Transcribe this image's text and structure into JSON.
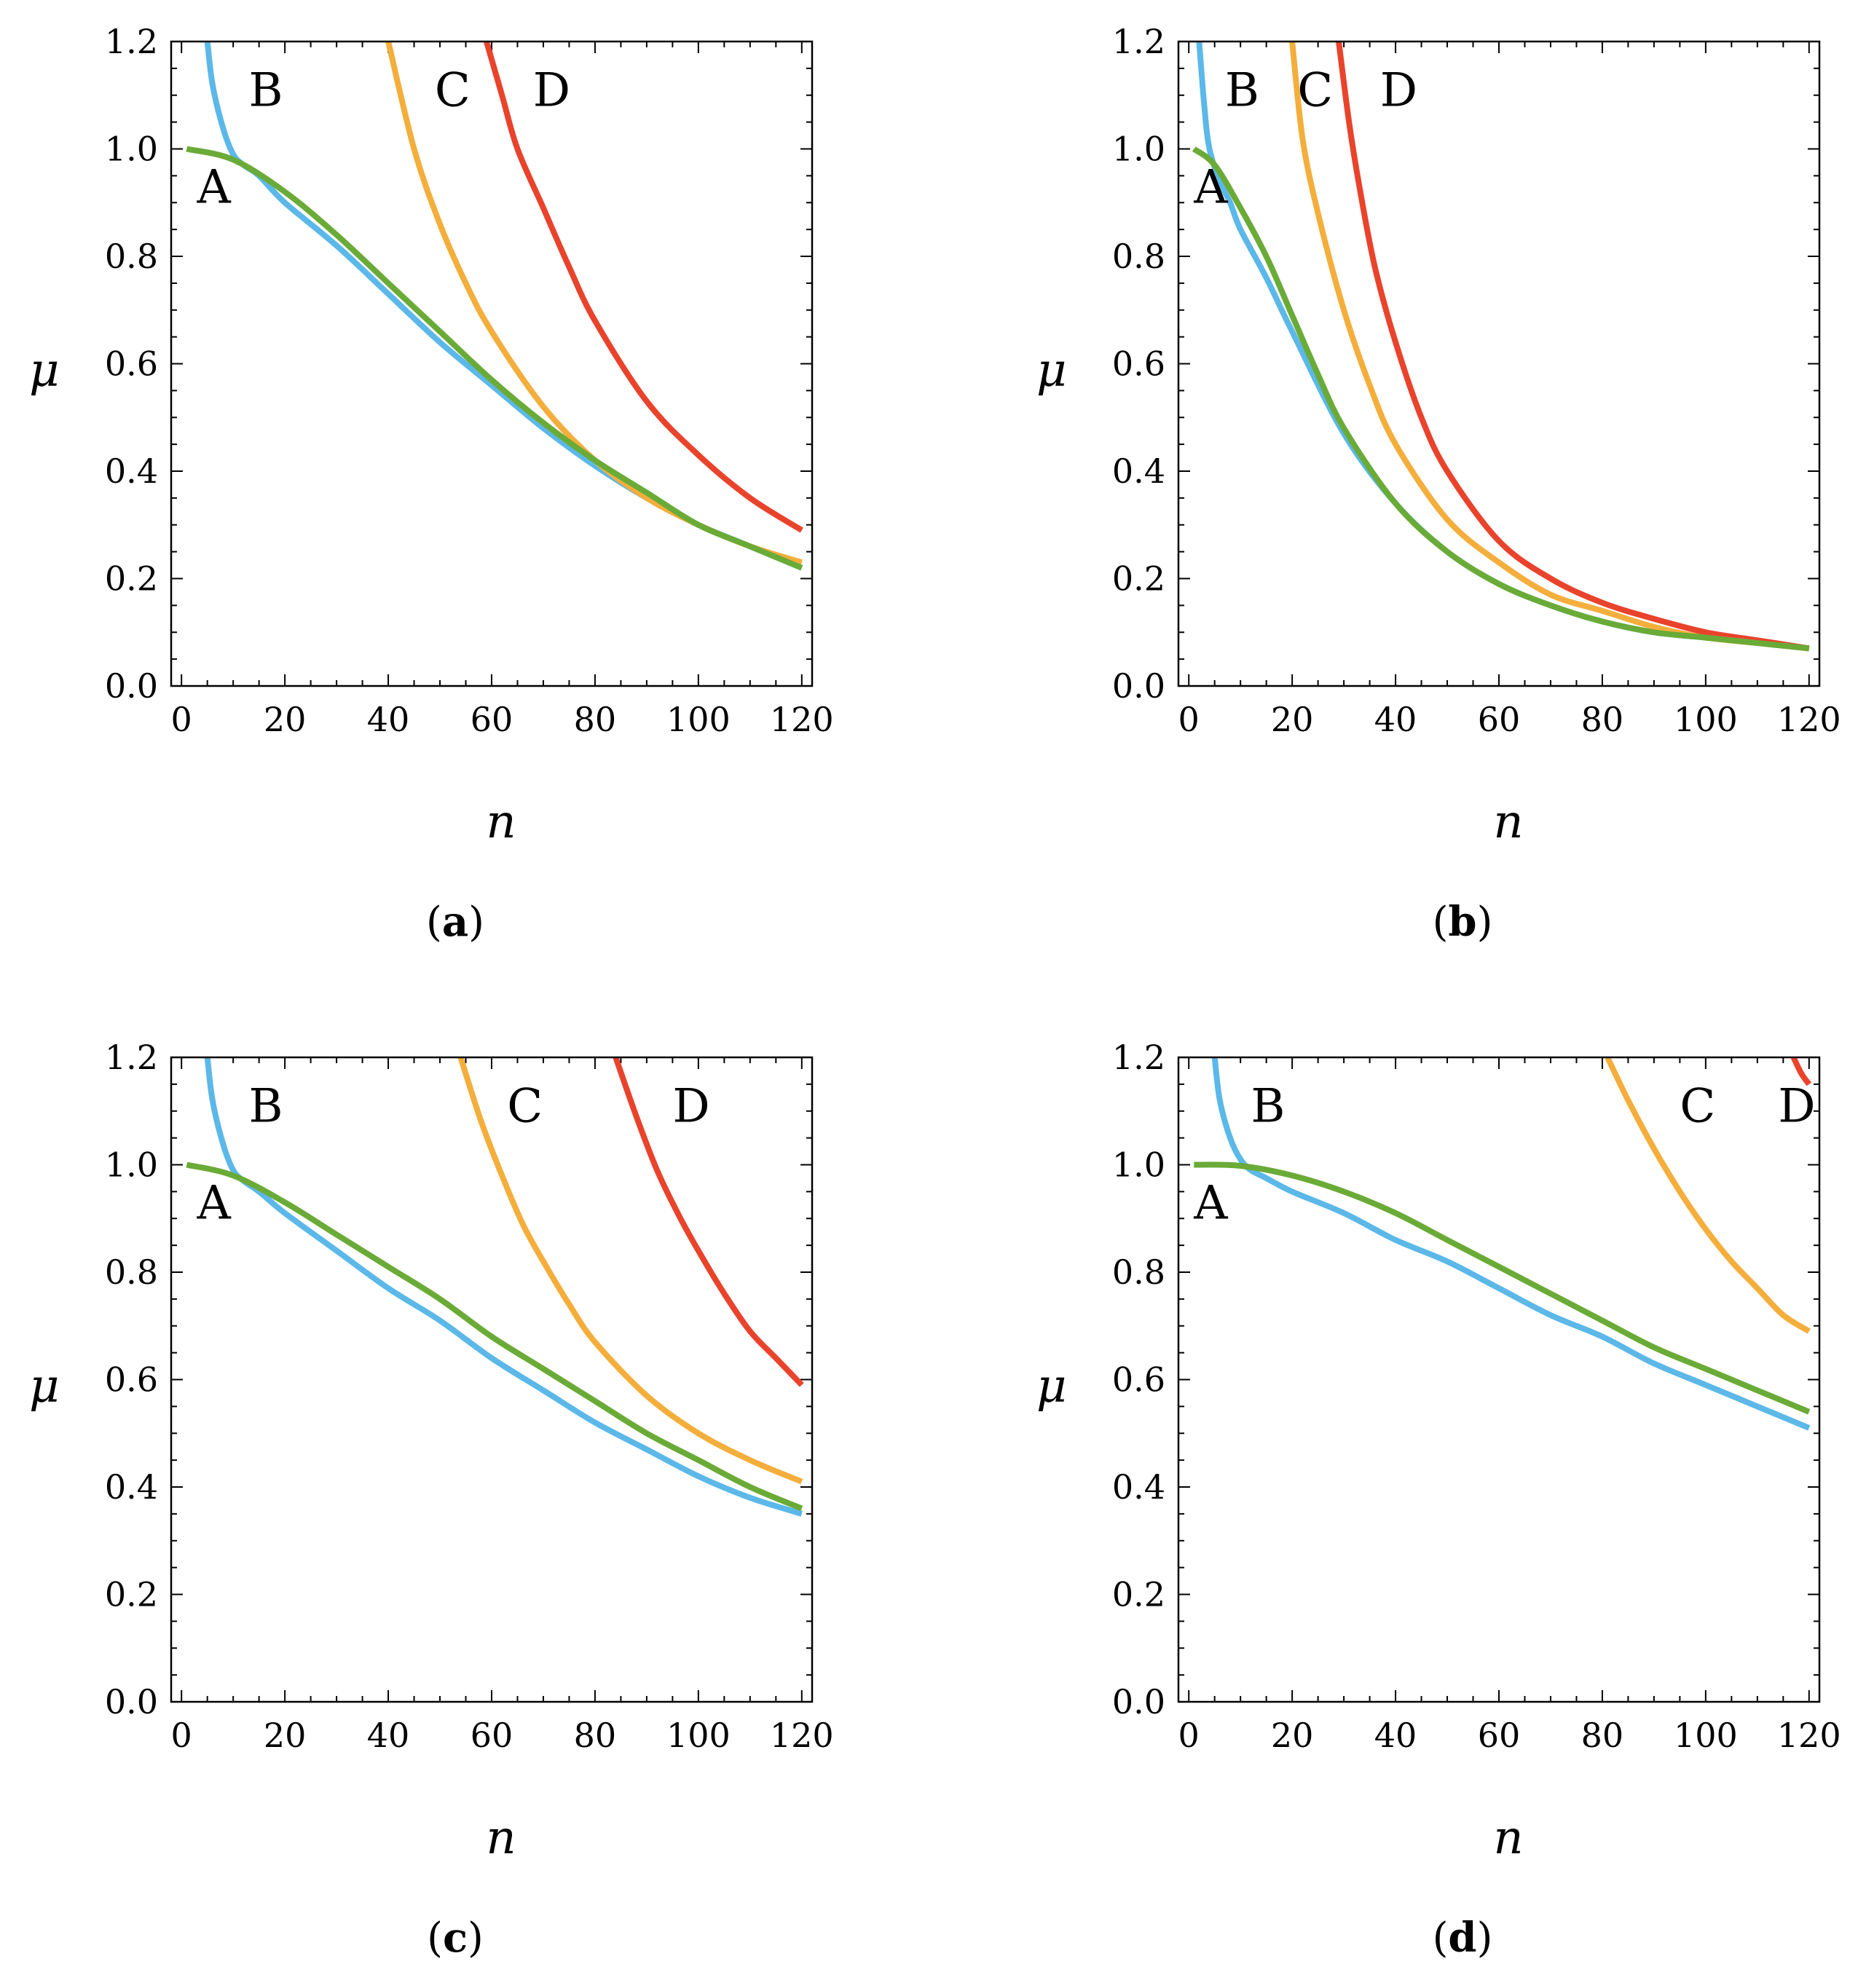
{
  "figure": {
    "colors": {
      "A": "#6aab37",
      "B": "#5bb8e8",
      "C": "#f4ae3c",
      "D": "#e9432c",
      "frame": "#000000"
    }
  },
  "chart_data": [
    {
      "type": "line",
      "panel": "a",
      "panel_label_open": "(",
      "panel_label_letter": "a",
      "panel_label_close": ")",
      "xlabel": "n",
      "ylabel": "μ",
      "xlim": [
        -2,
        122
      ],
      "ylim": [
        0.0,
        1.2
      ],
      "xticks": [
        0,
        20,
        40,
        60,
        80,
        100,
        120
      ],
      "yticks": [
        0.0,
        0.2,
        0.4,
        0.6,
        0.8,
        1.0,
        1.2
      ],
      "xtick_labels": [
        "0",
        "20",
        "40",
        "60",
        "80",
        "100",
        "120"
      ],
      "ytick_labels": [
        "0.0",
        "0.2",
        "0.4",
        "0.6",
        "0.8",
        "1.0",
        "1.2"
      ],
      "series": [
        {
          "name": "A",
          "color_key": "A",
          "x": [
            1,
            10,
            20,
            30,
            40,
            50,
            60,
            70,
            80,
            90,
            100,
            110,
            120
          ],
          "y": [
            1.0,
            0.98,
            0.92,
            0.84,
            0.75,
            0.66,
            0.57,
            0.49,
            0.42,
            0.36,
            0.3,
            0.26,
            0.22
          ]
        },
        {
          "name": "B",
          "color_key": "B",
          "x": [
            5,
            6,
            8,
            10,
            12,
            15,
            20,
            30,
            40,
            50,
            60,
            70,
            80,
            90,
            100,
            110,
            120
          ],
          "y": [
            1.2,
            1.12,
            1.04,
            0.99,
            0.97,
            0.95,
            0.9,
            0.82,
            0.73,
            0.64,
            0.56,
            0.48,
            0.41,
            0.35,
            0.3,
            0.26,
            0.22
          ]
        },
        {
          "name": "C",
          "color_key": "C",
          "x": [
            40,
            45,
            50,
            55,
            60,
            70,
            80,
            90,
            100,
            110,
            120
          ],
          "y": [
            1.2,
            1.0,
            0.86,
            0.75,
            0.66,
            0.52,
            0.42,
            0.35,
            0.3,
            0.26,
            0.23
          ]
        },
        {
          "name": "D",
          "color_key": "D",
          "x": [
            59,
            62,
            65,
            70,
            75,
            80,
            90,
            100,
            110,
            120
          ],
          "y": [
            1.2,
            1.1,
            1.0,
            0.89,
            0.78,
            0.68,
            0.53,
            0.43,
            0.35,
            0.29
          ]
        }
      ],
      "curve_labels": [
        {
          "text": "A",
          "x": 3,
          "y": 0.9
        },
        {
          "text": "B",
          "x": 13,
          "y": 1.08
        },
        {
          "text": "C",
          "x": 49,
          "y": 1.08
        },
        {
          "text": "D",
          "x": 68,
          "y": 1.08
        }
      ]
    },
    {
      "type": "line",
      "panel": "b",
      "panel_label_open": "(",
      "panel_label_letter": "b",
      "panel_label_close": ")",
      "xlabel": "n",
      "ylabel": "μ",
      "xlim": [
        -2,
        122
      ],
      "ylim": [
        0.0,
        1.2
      ],
      "xticks": [
        0,
        20,
        40,
        60,
        80,
        100,
        120
      ],
      "yticks": [
        0.0,
        0.2,
        0.4,
        0.6,
        0.8,
        1.0,
        1.2
      ],
      "xtick_labels": [
        "0",
        "20",
        "40",
        "60",
        "80",
        "100",
        "120"
      ],
      "ytick_labels": [
        "0.0",
        "0.2",
        "0.4",
        "0.6",
        "0.8",
        "1.0",
        "1.2"
      ],
      "series": [
        {
          "name": "A",
          "color_key": "A",
          "x": [
            1,
            5,
            10,
            15,
            20,
            25,
            30,
            40,
            50,
            60,
            70,
            80,
            90,
            100,
            110,
            120
          ],
          "y": [
            1.0,
            0.97,
            0.89,
            0.8,
            0.69,
            0.58,
            0.48,
            0.34,
            0.25,
            0.19,
            0.15,
            0.12,
            0.1,
            0.09,
            0.08,
            0.07
          ]
        },
        {
          "name": "B",
          "color_key": "B",
          "x": [
            2,
            3,
            4,
            6,
            8,
            10,
            15,
            20,
            30,
            40,
            50,
            60,
            70,
            80,
            90,
            100,
            110,
            120
          ],
          "y": [
            1.2,
            1.08,
            1.0,
            0.94,
            0.9,
            0.85,
            0.76,
            0.66,
            0.47,
            0.34,
            0.25,
            0.19,
            0.15,
            0.12,
            0.1,
            0.09,
            0.08,
            0.07
          ]
        },
        {
          "name": "C",
          "color_key": "C",
          "x": [
            20,
            22,
            25,
            30,
            35,
            40,
            50,
            60,
            70,
            80,
            90,
            100,
            110,
            120
          ],
          "y": [
            1.2,
            1.02,
            0.88,
            0.7,
            0.56,
            0.45,
            0.31,
            0.23,
            0.17,
            0.14,
            0.11,
            0.09,
            0.08,
            0.07
          ]
        },
        {
          "name": "D",
          "color_key": "D",
          "x": [
            29,
            31,
            33,
            36,
            40,
            45,
            50,
            60,
            70,
            80,
            90,
            100,
            110,
            120
          ],
          "y": [
            1.2,
            1.05,
            0.93,
            0.78,
            0.64,
            0.5,
            0.4,
            0.27,
            0.2,
            0.155,
            0.125,
            0.1,
            0.085,
            0.07
          ]
        }
      ],
      "curve_labels": [
        {
          "text": "A",
          "x": 1,
          "y": 0.9
        },
        {
          "text": "B",
          "x": 7,
          "y": 1.08
        },
        {
          "text": "C",
          "x": 21,
          "y": 1.08
        },
        {
          "text": "D",
          "x": 37,
          "y": 1.08
        }
      ]
    },
    {
      "type": "line",
      "panel": "c",
      "panel_label_open": "(",
      "panel_label_letter": "c",
      "panel_label_close": ")",
      "xlabel": "n",
      "ylabel": "μ",
      "xlim": [
        -2,
        122
      ],
      "ylim": [
        0.0,
        1.2
      ],
      "xticks": [
        0,
        20,
        40,
        60,
        80,
        100,
        120
      ],
      "yticks": [
        0.0,
        0.2,
        0.4,
        0.6,
        0.8,
        1.0,
        1.2
      ],
      "xtick_labels": [
        "0",
        "20",
        "40",
        "60",
        "80",
        "100",
        "120"
      ],
      "ytick_labels": [
        "0.0",
        "0.2",
        "0.4",
        "0.6",
        "0.8",
        "1.0",
        "1.2"
      ],
      "series": [
        {
          "name": "A",
          "color_key": "A",
          "x": [
            1,
            10,
            20,
            30,
            40,
            50,
            60,
            70,
            80,
            90,
            100,
            110,
            120
          ],
          "y": [
            1.0,
            0.98,
            0.93,
            0.87,
            0.81,
            0.75,
            0.68,
            0.62,
            0.56,
            0.5,
            0.45,
            0.4,
            0.36
          ]
        },
        {
          "name": "B",
          "color_key": "B",
          "x": [
            5,
            6,
            8,
            10,
            12,
            15,
            20,
            30,
            40,
            50,
            60,
            70,
            80,
            90,
            100,
            110,
            120
          ],
          "y": [
            1.2,
            1.12,
            1.04,
            0.99,
            0.97,
            0.95,
            0.91,
            0.84,
            0.77,
            0.71,
            0.64,
            0.58,
            0.52,
            0.47,
            0.42,
            0.38,
            0.35
          ]
        },
        {
          "name": "C",
          "color_key": "C",
          "x": [
            54,
            58,
            62,
            66,
            70,
            75,
            80,
            90,
            100,
            110,
            120
          ],
          "y": [
            1.2,
            1.08,
            0.98,
            0.89,
            0.82,
            0.74,
            0.67,
            0.57,
            0.5,
            0.45,
            0.41
          ]
        },
        {
          "name": "D",
          "color_key": "D",
          "x": [
            84,
            88,
            92,
            96,
            100,
            105,
            110,
            115,
            120
          ],
          "y": [
            1.2,
            1.09,
            0.99,
            0.91,
            0.84,
            0.76,
            0.69,
            0.64,
            0.59
          ]
        }
      ],
      "curve_labels": [
        {
          "text": "A",
          "x": 3,
          "y": 0.9
        },
        {
          "text": "B",
          "x": 13,
          "y": 1.08
        },
        {
          "text": "C",
          "x": 63,
          "y": 1.08
        },
        {
          "text": "D",
          "x": 95,
          "y": 1.08
        }
      ]
    },
    {
      "type": "line",
      "panel": "d",
      "panel_label_open": "(",
      "panel_label_letter": "d",
      "panel_label_close": ")",
      "xlabel": "n",
      "ylabel": "μ",
      "xlim": [
        -2,
        122
      ],
      "ylim": [
        0.0,
        1.2
      ],
      "xticks": [
        0,
        20,
        40,
        60,
        80,
        100,
        120
      ],
      "yticks": [
        0.0,
        0.2,
        0.4,
        0.6,
        0.8,
        1.0,
        1.2
      ],
      "xtick_labels": [
        "0",
        "20",
        "40",
        "60",
        "80",
        "100",
        "120"
      ],
      "ytick_labels": [
        "0.0",
        "0.2",
        "0.4",
        "0.6",
        "0.8",
        "1.0",
        "1.2"
      ],
      "series": [
        {
          "name": "A",
          "color_key": "A",
          "x": [
            1,
            10,
            20,
            30,
            40,
            50,
            60,
            70,
            80,
            90,
            100,
            110,
            120
          ],
          "y": [
            1.0,
            0.998,
            0.98,
            0.95,
            0.91,
            0.86,
            0.81,
            0.76,
            0.71,
            0.66,
            0.62,
            0.58,
            0.54
          ]
        },
        {
          "name": "B",
          "color_key": "B",
          "x": [
            5,
            6,
            8,
            10,
            12,
            15,
            20,
            30,
            40,
            50,
            60,
            70,
            80,
            90,
            100,
            110,
            120
          ],
          "y": [
            1.2,
            1.12,
            1.05,
            1.01,
            0.99,
            0.975,
            0.95,
            0.91,
            0.86,
            0.82,
            0.77,
            0.72,
            0.68,
            0.63,
            0.59,
            0.55,
            0.51
          ]
        },
        {
          "name": "C",
          "color_key": "C",
          "x": [
            81,
            85,
            90,
            95,
            100,
            105,
            110,
            115,
            120
          ],
          "y": [
            1.2,
            1.12,
            1.03,
            0.95,
            0.88,
            0.82,
            0.77,
            0.72,
            0.69
          ]
        },
        {
          "name": "D",
          "color_key": "D",
          "x": [
            117,
            118.5,
            120
          ],
          "y": [
            1.2,
            1.17,
            1.15
          ]
        }
      ],
      "curve_labels": [
        {
          "text": "A",
          "x": 1,
          "y": 0.9
        },
        {
          "text": "B",
          "x": 12,
          "y": 1.08
        },
        {
          "text": "C",
          "x": 95,
          "y": 1.08
        },
        {
          "text": "D",
          "x": 114,
          "y": 1.08
        }
      ]
    }
  ]
}
